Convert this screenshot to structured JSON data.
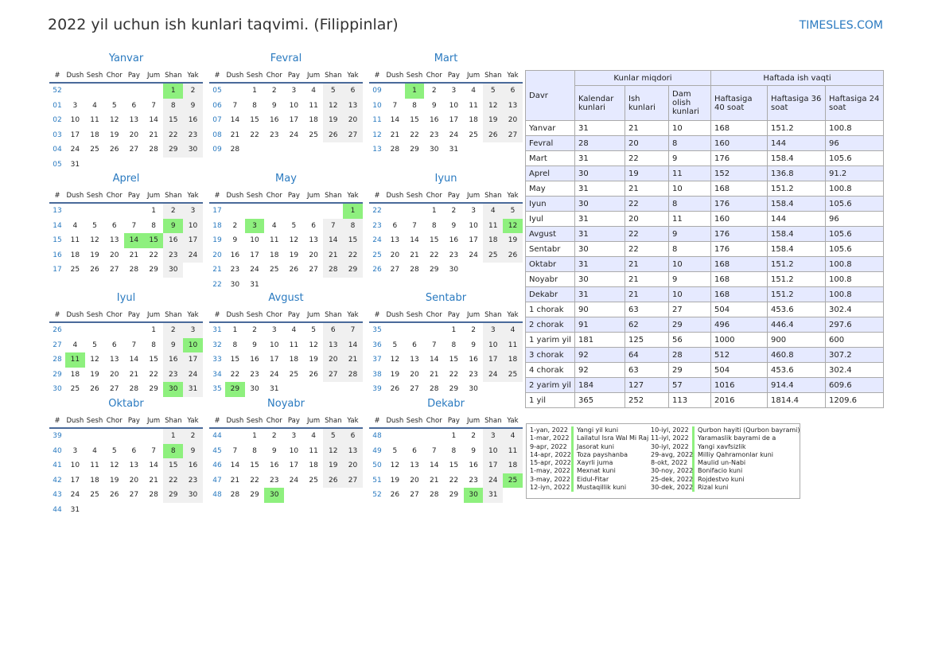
{
  "title": "2022 yil uchun ish kunlari taqvimi. (Filippinlar)",
  "brand": "TIMESLES.COM",
  "colors": {
    "accent": "#2a7ac0",
    "holiday": "#8ef07e",
    "weekend": "#f0f0f0",
    "table_header": "#e6eaff"
  },
  "weekday_headers": [
    "#",
    "Dush",
    "Sesh",
    "Chor",
    "Pay",
    "Jum",
    "Shan",
    "Yak"
  ],
  "months": [
    {
      "name": "Yanvar",
      "first_weekday": 5,
      "days": 31,
      "weeks": [
        "52",
        "01",
        "02",
        "03",
        "04",
        "05"
      ],
      "holidays": [
        1
      ]
    },
    {
      "name": "Fevral",
      "first_weekday": 1,
      "days": 28,
      "weeks": [
        "05",
        "06",
        "07",
        "08",
        "09"
      ],
      "holidays": []
    },
    {
      "name": "Mart",
      "first_weekday": 1,
      "days": 31,
      "weeks": [
        "09",
        "10",
        "11",
        "12",
        "13"
      ],
      "holidays": [
        1
      ]
    },
    {
      "name": "Aprel",
      "first_weekday": 4,
      "days": 30,
      "weeks": [
        "13",
        "14",
        "15",
        "16",
        "17"
      ],
      "holidays": [
        9,
        14,
        15
      ]
    },
    {
      "name": "May",
      "first_weekday": 6,
      "days": 31,
      "weeks": [
        "17",
        "18",
        "19",
        "20",
        "21",
        "22"
      ],
      "holidays": [
        1,
        3
      ]
    },
    {
      "name": "Iyun",
      "first_weekday": 2,
      "days": 30,
      "weeks": [
        "22",
        "23",
        "24",
        "25",
        "26"
      ],
      "holidays": [
        12
      ]
    },
    {
      "name": "Iyul",
      "first_weekday": 4,
      "days": 31,
      "weeks": [
        "26",
        "27",
        "28",
        "29",
        "30"
      ],
      "holidays": [
        10,
        11,
        30
      ]
    },
    {
      "name": "Avgust",
      "first_weekday": 0,
      "days": 31,
      "weeks": [
        "31",
        "32",
        "33",
        "34",
        "35"
      ],
      "holidays": [
        29
      ]
    },
    {
      "name": "Sentabr",
      "first_weekday": 3,
      "days": 30,
      "weeks": [
        "35",
        "36",
        "37",
        "38",
        "39"
      ],
      "holidays": []
    },
    {
      "name": "Oktabr",
      "first_weekday": 5,
      "days": 31,
      "weeks": [
        "39",
        "40",
        "41",
        "42",
        "43",
        "44"
      ],
      "holidays": [
        8
      ]
    },
    {
      "name": "Noyabr",
      "first_weekday": 1,
      "days": 30,
      "weeks": [
        "44",
        "45",
        "46",
        "47",
        "48"
      ],
      "holidays": [
        30
      ]
    },
    {
      "name": "Dekabr",
      "first_weekday": 3,
      "days": 31,
      "weeks": [
        "48",
        "49",
        "50",
        "51",
        "52"
      ],
      "holidays": [
        25,
        30
      ]
    }
  ],
  "table": {
    "davr": "Davr",
    "group1": "Kunlar miqdori",
    "group2": "Haftada ish vaqti",
    "cols": [
      "Kalendar kunlari",
      "Ish kunlari",
      "Dam olish kunlari",
      "Haftasiga 40 soat",
      "Haftasiga 36 soat",
      "Haftasiga 24 soat"
    ],
    "rows": [
      [
        "Yanvar",
        "31",
        "21",
        "10",
        "168",
        "151.2",
        "100.8"
      ],
      [
        "Fevral",
        "28",
        "20",
        "8",
        "160",
        "144",
        "96"
      ],
      [
        "Mart",
        "31",
        "22",
        "9",
        "176",
        "158.4",
        "105.6"
      ],
      [
        "Aprel",
        "30",
        "19",
        "11",
        "152",
        "136.8",
        "91.2"
      ],
      [
        "May",
        "31",
        "21",
        "10",
        "168",
        "151.2",
        "100.8"
      ],
      [
        "Iyun",
        "30",
        "22",
        "8",
        "176",
        "158.4",
        "105.6"
      ],
      [
        "Iyul",
        "31",
        "20",
        "11",
        "160",
        "144",
        "96"
      ],
      [
        "Avgust",
        "31",
        "22",
        "9",
        "176",
        "158.4",
        "105.6"
      ],
      [
        "Sentabr",
        "30",
        "22",
        "8",
        "176",
        "158.4",
        "105.6"
      ],
      [
        "Oktabr",
        "31",
        "21",
        "10",
        "168",
        "151.2",
        "100.8"
      ],
      [
        "Noyabr",
        "30",
        "21",
        "9",
        "168",
        "151.2",
        "100.8"
      ],
      [
        "Dekabr",
        "31",
        "21",
        "10",
        "168",
        "151.2",
        "100.8"
      ],
      [
        "1 chorak",
        "90",
        "63",
        "27",
        "504",
        "453.6",
        "302.4"
      ],
      [
        "2 chorak",
        "91",
        "62",
        "29",
        "496",
        "446.4",
        "297.6"
      ],
      [
        "1 yarim yil",
        "181",
        "125",
        "56",
        "1000",
        "900",
        "600"
      ],
      [
        "3 chorak",
        "92",
        "64",
        "28",
        "512",
        "460.8",
        "307.2"
      ],
      [
        "4 chorak",
        "92",
        "63",
        "29",
        "504",
        "453.6",
        "302.4"
      ],
      [
        "2 yarim yil",
        "184",
        "127",
        "57",
        "1016",
        "914.4",
        "609.6"
      ],
      [
        "1 yil",
        "365",
        "252",
        "113",
        "2016",
        "1814.4",
        "1209.6"
      ]
    ]
  },
  "holidays": [
    [
      "1-yan, 2022",
      "Yangi yil kuni"
    ],
    [
      "1-mar, 2022",
      "Lailatul Isra Wal Mi Raj"
    ],
    [
      "9-apr, 2022",
      "Jasorat kuni"
    ],
    [
      "14-apr, 2022",
      "Toza payshanba"
    ],
    [
      "15-apr, 2022",
      "Xayrli juma"
    ],
    [
      "1-may, 2022",
      "Mexnat kuni"
    ],
    [
      "3-may, 2022",
      "Eidul-Fitar"
    ],
    [
      "12-iyn, 2022",
      "Mustaqillik kuni"
    ],
    [
      "10-iyl, 2022",
      "Qurbon hayiti (Qurbon bayrami)"
    ],
    [
      "11-iyl, 2022",
      "Yaramaslik bayrami de a"
    ],
    [
      "30-iyl, 2022",
      "Yangi xavfsizlik"
    ],
    [
      "29-avg, 2022",
      "Milliy Qahramonlar kuni"
    ],
    [
      "8-okt, 2022",
      "Maulid un-Nabi"
    ],
    [
      "30-noy, 2022",
      "Bonifacio kuni"
    ],
    [
      "25-dek, 2022",
      "Rojdestvo kuni"
    ],
    [
      "30-dek, 2022",
      "Rizal kuni"
    ]
  ]
}
